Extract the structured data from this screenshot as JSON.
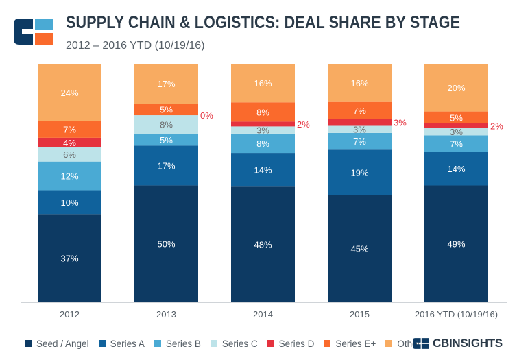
{
  "header": {
    "title": "SUPPLY CHAIN & LOGISTICS: DEAL SHARE BY STAGE",
    "subtitle": "2012 – 2016 YTD (10/19/16)",
    "logo_icon": "cb-insights-logo-icon"
  },
  "chart_data": {
    "type": "bar",
    "stacked": true,
    "title": "SUPPLY CHAIN & LOGISTICS: DEAL SHARE BY STAGE",
    "subtitle": "2012 – 2016 YTD (10/19/16)",
    "xlabel": "",
    "ylabel": "",
    "ylim": [
      0,
      100
    ],
    "grid": false,
    "legend_position": "bottom",
    "categories": [
      "2012",
      "2013",
      "2014",
      "2015",
      "2016 YTD (10/19/16)"
    ],
    "series": [
      {
        "name": "Seed / Angel",
        "color": "#0d3a63",
        "values": [
          37,
          50,
          48,
          45,
          49
        ],
        "labels": [
          "37%",
          "50%",
          "48%",
          "45%",
          "49%"
        ],
        "label_color": "#ffffff"
      },
      {
        "name": "Series A",
        "color": "#10629c",
        "values": [
          10,
          17,
          14,
          19,
          14
        ],
        "labels": [
          "10%",
          "17%",
          "14%",
          "19%",
          "14%"
        ],
        "label_color": "#ffffff"
      },
      {
        "name": "Series B",
        "color": "#4aaad4",
        "values": [
          12,
          5,
          8,
          7,
          7
        ],
        "labels": [
          "12%",
          "5%",
          "8%",
          "7%",
          "7%"
        ],
        "label_color": "#ffffff"
      },
      {
        "name": "Series C",
        "color": "#bde3e9",
        "values": [
          6,
          8,
          3,
          3,
          3
        ],
        "labels": [
          "6%",
          "8%",
          "3%",
          "3%",
          "3%"
        ],
        "label_color": "#6b6b6b"
      },
      {
        "name": "Series D",
        "color": "#e5323e",
        "values": [
          4,
          0,
          2,
          3,
          2
        ],
        "labels": [
          "4%",
          "0%",
          "2%",
          "3%",
          "2%"
        ],
        "label_color": "#ffffff",
        "outside_label_color": "#e5323e"
      },
      {
        "name": "Series E+",
        "color": "#fa6a2c",
        "values": [
          7,
          5,
          8,
          7,
          5
        ],
        "labels": [
          "7%",
          "5%",
          "8%",
          "7%",
          "5%"
        ],
        "label_color": "#ffffff"
      },
      {
        "name": "Other",
        "color": "#f8ab61",
        "values": [
          24,
          17,
          16,
          16,
          20
        ],
        "labels": [
          "24%",
          "17%",
          "16%",
          "16%",
          "20%"
        ],
        "label_color": "#ffffff"
      }
    ]
  },
  "legend": {
    "items": [
      {
        "label": "Seed / Angel",
        "color": "#0d3a63"
      },
      {
        "label": "Series A",
        "color": "#10629c"
      },
      {
        "label": "Series B",
        "color": "#4aaad4"
      },
      {
        "label": "Series C",
        "color": "#bde3e9"
      },
      {
        "label": "Series D",
        "color": "#e5323e"
      },
      {
        "label": "Series E+",
        "color": "#fa6a2c"
      },
      {
        "label": "Other",
        "color": "#f8ab61"
      }
    ]
  },
  "brand": {
    "icon": "cb-insights-brand-icon",
    "text": "CBINSIGHTS"
  }
}
